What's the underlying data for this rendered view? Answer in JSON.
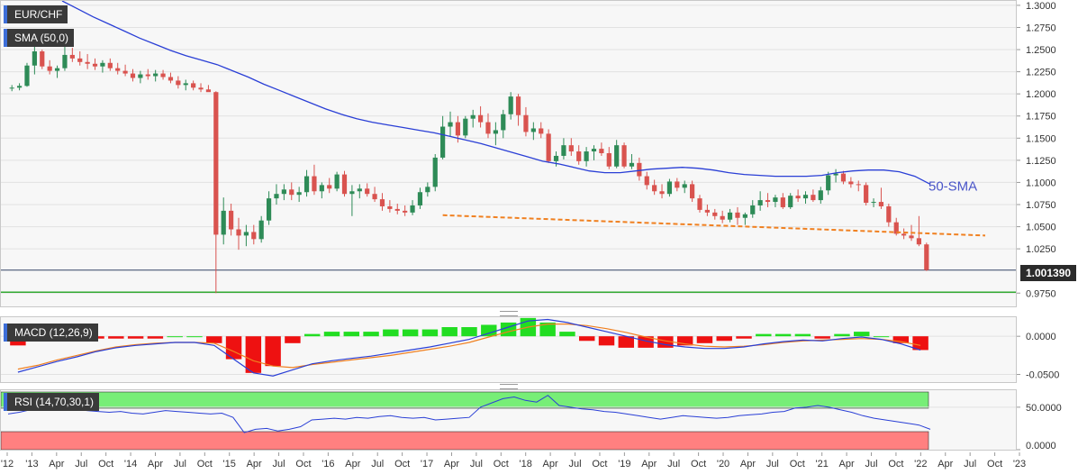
{
  "symbol_label": "EUR/CHF",
  "sma_label": "SMA (50,0)",
  "macd_label": "MACD (12,26,9)",
  "rsi_label": "RSI (14,70,30,1)",
  "sma_annotation": "50-SMA",
  "last_price": "1.001390",
  "colors": {
    "up": "#2e8b57",
    "down": "#d9534f",
    "sma": "#2a3fd6",
    "trend": "#f08020",
    "macd": "#2a3fd6",
    "signal": "#f08020",
    "hist_pos": "#22dd22",
    "hist_neg": "#ee1111",
    "rsi": "#2a3fd6",
    "rsi_ob": "#77ee77",
    "rsi_os": "#ff8080",
    "support": "#33aa33",
    "price_line": "#334466"
  },
  "x_axis_labels": [
    "'12",
    "'13",
    "Apr",
    "Jul",
    "Oct",
    "'14",
    "Apr",
    "Jul",
    "Oct",
    "'15",
    "Apr",
    "Jul",
    "Oct",
    "'16",
    "Apr",
    "Jul",
    "Oct",
    "'17",
    "Apr",
    "Jul",
    "Oct",
    "'18",
    "Apr",
    "Jul",
    "Oct",
    "'19",
    "Apr",
    "Jul",
    "Oct",
    "'20",
    "Apr",
    "Jul",
    "Oct",
    "'21",
    "Apr",
    "Jul",
    "Oct",
    "'22",
    "Apr",
    "Jul",
    "Oct",
    "'23"
  ],
  "chart_data": {
    "type": "candlestick",
    "price_ylim": [
      0.96,
      1.305
    ],
    "price_ticks": [
      "1.3000",
      "1.2750",
      "1.2500",
      "1.2250",
      "1.2000",
      "1.1750",
      "1.1500",
      "1.1250",
      "1.1000",
      "1.0750",
      "1.0500",
      "1.0250",
      "0.9750"
    ],
    "candles": [
      {
        "o": 1.206,
        "h": 1.21,
        "l": 1.203,
        "c": 1.207
      },
      {
        "o": 1.207,
        "h": 1.212,
        "l": 1.204,
        "c": 1.209
      },
      {
        "o": 1.209,
        "h": 1.235,
        "l": 1.208,
        "c": 1.232
      },
      {
        "o": 1.232,
        "h": 1.26,
        "l": 1.222,
        "c": 1.248
      },
      {
        "o": 1.248,
        "h": 1.25,
        "l": 1.228,
        "c": 1.231
      },
      {
        "o": 1.231,
        "h": 1.238,
        "l": 1.222,
        "c": 1.226
      },
      {
        "o": 1.226,
        "h": 1.232,
        "l": 1.218,
        "c": 1.229
      },
      {
        "o": 1.229,
        "h": 1.262,
        "l": 1.226,
        "c": 1.244
      },
      {
        "o": 1.244,
        "h": 1.252,
        "l": 1.236,
        "c": 1.24
      },
      {
        "o": 1.24,
        "h": 1.248,
        "l": 1.232,
        "c": 1.236
      },
      {
        "o": 1.236,
        "h": 1.245,
        "l": 1.228,
        "c": 1.234
      },
      {
        "o": 1.234,
        "h": 1.24,
        "l": 1.227,
        "c": 1.231
      },
      {
        "o": 1.231,
        "h": 1.238,
        "l": 1.224,
        "c": 1.235
      },
      {
        "o": 1.235,
        "h": 1.24,
        "l": 1.226,
        "c": 1.229
      },
      {
        "o": 1.229,
        "h": 1.235,
        "l": 1.222,
        "c": 1.226
      },
      {
        "o": 1.226,
        "h": 1.233,
        "l": 1.22,
        "c": 1.223
      },
      {
        "o": 1.223,
        "h": 1.228,
        "l": 1.214,
        "c": 1.218
      },
      {
        "o": 1.218,
        "h": 1.226,
        "l": 1.212,
        "c": 1.222
      },
      {
        "o": 1.222,
        "h": 1.228,
        "l": 1.216,
        "c": 1.22
      },
      {
        "o": 1.22,
        "h": 1.227,
        "l": 1.214,
        "c": 1.223
      },
      {
        "o": 1.223,
        "h": 1.227,
        "l": 1.216,
        "c": 1.219
      },
      {
        "o": 1.219,
        "h": 1.224,
        "l": 1.212,
        "c": 1.215
      },
      {
        "o": 1.215,
        "h": 1.22,
        "l": 1.206,
        "c": 1.21
      },
      {
        "o": 1.21,
        "h": 1.216,
        "l": 1.204,
        "c": 1.212
      },
      {
        "o": 1.212,
        "h": 1.215,
        "l": 1.204,
        "c": 1.207
      },
      {
        "o": 1.207,
        "h": 1.212,
        "l": 1.202,
        "c": 1.205
      },
      {
        "o": 1.205,
        "h": 1.21,
        "l": 1.203,
        "c": 1.202
      },
      {
        "o": 1.202,
        "h": 1.203,
        "l": 0.975,
        "c": 1.041
      },
      {
        "o": 1.041,
        "h": 1.083,
        "l": 1.03,
        "c": 1.068
      },
      {
        "o": 1.068,
        "h": 1.076,
        "l": 1.04,
        "c": 1.047
      },
      {
        "o": 1.047,
        "h": 1.06,
        "l": 1.024,
        "c": 1.04
      },
      {
        "o": 1.04,
        "h": 1.052,
        "l": 1.028,
        "c": 1.044
      },
      {
        "o": 1.044,
        "h": 1.052,
        "l": 1.03,
        "c": 1.036
      },
      {
        "o": 1.036,
        "h": 1.062,
        "l": 1.032,
        "c": 1.057
      },
      {
        "o": 1.057,
        "h": 1.09,
        "l": 1.052,
        "c": 1.082
      },
      {
        "o": 1.082,
        "h": 1.098,
        "l": 1.075,
        "c": 1.087
      },
      {
        "o": 1.087,
        "h": 1.098,
        "l": 1.08,
        "c": 1.092
      },
      {
        "o": 1.092,
        "h": 1.1,
        "l": 1.08,
        "c": 1.086
      },
      {
        "o": 1.086,
        "h": 1.095,
        "l": 1.078,
        "c": 1.089
      },
      {
        "o": 1.089,
        "h": 1.114,
        "l": 1.084,
        "c": 1.107
      },
      {
        "o": 1.107,
        "h": 1.12,
        "l": 1.086,
        "c": 1.09
      },
      {
        "o": 1.09,
        "h": 1.1,
        "l": 1.082,
        "c": 1.097
      },
      {
        "o": 1.097,
        "h": 1.105,
        "l": 1.088,
        "c": 1.093
      },
      {
        "o": 1.093,
        "h": 1.112,
        "l": 1.09,
        "c": 1.109
      },
      {
        "o": 1.109,
        "h": 1.113,
        "l": 1.084,
        "c": 1.087
      },
      {
        "o": 1.087,
        "h": 1.097,
        "l": 1.062,
        "c": 1.09
      },
      {
        "o": 1.09,
        "h": 1.098,
        "l": 1.082,
        "c": 1.093
      },
      {
        "o": 1.093,
        "h": 1.099,
        "l": 1.084,
        "c": 1.087
      },
      {
        "o": 1.087,
        "h": 1.095,
        "l": 1.078,
        "c": 1.081
      },
      {
        "o": 1.081,
        "h": 1.088,
        "l": 1.068,
        "c": 1.073
      },
      {
        "o": 1.073,
        "h": 1.08,
        "l": 1.066,
        "c": 1.07
      },
      {
        "o": 1.07,
        "h": 1.076,
        "l": 1.064,
        "c": 1.068
      },
      {
        "o": 1.068,
        "h": 1.074,
        "l": 1.062,
        "c": 1.066
      },
      {
        "o": 1.066,
        "h": 1.08,
        "l": 1.063,
        "c": 1.074
      },
      {
        "o": 1.074,
        "h": 1.094,
        "l": 1.07,
        "c": 1.089
      },
      {
        "o": 1.089,
        "h": 1.1,
        "l": 1.084,
        "c": 1.095
      },
      {
        "o": 1.095,
        "h": 1.132,
        "l": 1.09,
        "c": 1.128
      },
      {
        "o": 1.128,
        "h": 1.175,
        "l": 1.126,
        "c": 1.163
      },
      {
        "o": 1.163,
        "h": 1.18,
        "l": 1.152,
        "c": 1.168
      },
      {
        "o": 1.168,
        "h": 1.175,
        "l": 1.145,
        "c": 1.153
      },
      {
        "o": 1.153,
        "h": 1.175,
        "l": 1.15,
        "c": 1.172
      },
      {
        "o": 1.172,
        "h": 1.182,
        "l": 1.162,
        "c": 1.176
      },
      {
        "o": 1.176,
        "h": 1.186,
        "l": 1.162,
        "c": 1.168
      },
      {
        "o": 1.168,
        "h": 1.178,
        "l": 1.15,
        "c": 1.155
      },
      {
        "o": 1.155,
        "h": 1.168,
        "l": 1.142,
        "c": 1.159
      },
      {
        "o": 1.159,
        "h": 1.182,
        "l": 1.15,
        "c": 1.177
      },
      {
        "o": 1.177,
        "h": 1.202,
        "l": 1.171,
        "c": 1.197
      },
      {
        "o": 1.197,
        "h": 1.2,
        "l": 1.164,
        "c": 1.176
      },
      {
        "o": 1.176,
        "h": 1.185,
        "l": 1.152,
        "c": 1.157
      },
      {
        "o": 1.157,
        "h": 1.168,
        "l": 1.148,
        "c": 1.161
      },
      {
        "o": 1.161,
        "h": 1.168,
        "l": 1.15,
        "c": 1.155
      },
      {
        "o": 1.155,
        "h": 1.16,
        "l": 1.122,
        "c": 1.124
      },
      {
        "o": 1.124,
        "h": 1.135,
        "l": 1.118,
        "c": 1.13
      },
      {
        "o": 1.13,
        "h": 1.15,
        "l": 1.126,
        "c": 1.142
      },
      {
        "o": 1.142,
        "h": 1.15,
        "l": 1.13,
        "c": 1.135
      },
      {
        "o": 1.135,
        "h": 1.142,
        "l": 1.12,
        "c": 1.124
      },
      {
        "o": 1.124,
        "h": 1.14,
        "l": 1.118,
        "c": 1.135
      },
      {
        "o": 1.135,
        "h": 1.142,
        "l": 1.125,
        "c": 1.138
      },
      {
        "o": 1.138,
        "h": 1.145,
        "l": 1.13,
        "c": 1.133
      },
      {
        "o": 1.133,
        "h": 1.14,
        "l": 1.115,
        "c": 1.118
      },
      {
        "o": 1.118,
        "h": 1.148,
        "l": 1.116,
        "c": 1.142
      },
      {
        "o": 1.142,
        "h": 1.145,
        "l": 1.116,
        "c": 1.118
      },
      {
        "o": 1.118,
        "h": 1.132,
        "l": 1.115,
        "c": 1.122
      },
      {
        "o": 1.122,
        "h": 1.128,
        "l": 1.102,
        "c": 1.107
      },
      {
        "o": 1.107,
        "h": 1.112,
        "l": 1.092,
        "c": 1.097
      },
      {
        "o": 1.097,
        "h": 1.103,
        "l": 1.086,
        "c": 1.09
      },
      {
        "o": 1.09,
        "h": 1.098,
        "l": 1.082,
        "c": 1.087
      },
      {
        "o": 1.087,
        "h": 1.104,
        "l": 1.084,
        "c": 1.101
      },
      {
        "o": 1.101,
        "h": 1.105,
        "l": 1.09,
        "c": 1.094
      },
      {
        "o": 1.094,
        "h": 1.102,
        "l": 1.088,
        "c": 1.098
      },
      {
        "o": 1.098,
        "h": 1.102,
        "l": 1.078,
        "c": 1.082
      },
      {
        "o": 1.082,
        "h": 1.086,
        "l": 1.066,
        "c": 1.069
      },
      {
        "o": 1.069,
        "h": 1.075,
        "l": 1.062,
        "c": 1.066
      },
      {
        "o": 1.066,
        "h": 1.07,
        "l": 1.058,
        "c": 1.062
      },
      {
        "o": 1.062,
        "h": 1.068,
        "l": 1.054,
        "c": 1.058
      },
      {
        "o": 1.058,
        "h": 1.07,
        "l": 1.055,
        "c": 1.066
      },
      {
        "o": 1.066,
        "h": 1.072,
        "l": 1.052,
        "c": 1.06
      },
      {
        "o": 1.06,
        "h": 1.066,
        "l": 1.052,
        "c": 1.064
      },
      {
        "o": 1.064,
        "h": 1.08,
        "l": 1.06,
        "c": 1.074
      },
      {
        "o": 1.074,
        "h": 1.09,
        "l": 1.068,
        "c": 1.08
      },
      {
        "o": 1.08,
        "h": 1.088,
        "l": 1.072,
        "c": 1.078
      },
      {
        "o": 1.078,
        "h": 1.086,
        "l": 1.072,
        "c": 1.083
      },
      {
        "o": 1.083,
        "h": 1.088,
        "l": 1.07,
        "c": 1.072
      },
      {
        "o": 1.072,
        "h": 1.088,
        "l": 1.07,
        "c": 1.085
      },
      {
        "o": 1.085,
        "h": 1.092,
        "l": 1.078,
        "c": 1.082
      },
      {
        "o": 1.082,
        "h": 1.09,
        "l": 1.076,
        "c": 1.086
      },
      {
        "o": 1.086,
        "h": 1.092,
        "l": 1.078,
        "c": 1.08
      },
      {
        "o": 1.08,
        "h": 1.095,
        "l": 1.076,
        "c": 1.091
      },
      {
        "o": 1.091,
        "h": 1.112,
        "l": 1.086,
        "c": 1.108
      },
      {
        "o": 1.108,
        "h": 1.115,
        "l": 1.1,
        "c": 1.11
      },
      {
        "o": 1.11,
        "h": 1.113,
        "l": 1.098,
        "c": 1.101
      },
      {
        "o": 1.101,
        "h": 1.106,
        "l": 1.094,
        "c": 1.098
      },
      {
        "o": 1.098,
        "h": 1.102,
        "l": 1.09,
        "c": 1.097
      },
      {
        "o": 1.097,
        "h": 1.1,
        "l": 1.074,
        "c": 1.077
      },
      {
        "o": 1.077,
        "h": 1.082,
        "l": 1.072,
        "c": 1.078
      },
      {
        "o": 1.078,
        "h": 1.094,
        "l": 1.07,
        "c": 1.073
      },
      {
        "o": 1.073,
        "h": 1.076,
        "l": 1.05,
        "c": 1.055
      },
      {
        "o": 1.055,
        "h": 1.06,
        "l": 1.04,
        "c": 1.042
      },
      {
        "o": 1.042,
        "h": 1.048,
        "l": 1.036,
        "c": 1.04
      },
      {
        "o": 1.04,
        "h": 1.052,
        "l": 1.034,
        "c": 1.037
      },
      {
        "o": 1.037,
        "h": 1.062,
        "l": 1.028,
        "c": 1.03
      },
      {
        "o": 1.03,
        "h": 1.032,
        "l": 1.0,
        "c": 1.001
      }
    ],
    "sma50": [
      1.305,
      1.296,
      1.287,
      1.279,
      1.271,
      1.263,
      1.256,
      1.249,
      1.243,
      1.238,
      1.233,
      1.226,
      1.219,
      1.211,
      1.204,
      1.197,
      1.19,
      1.183,
      1.177,
      1.172,
      1.168,
      1.165,
      1.162,
      1.159,
      1.156,
      1.152,
      1.148,
      1.144,
      1.139,
      1.134,
      1.129,
      1.124,
      1.121,
      1.117,
      1.113,
      1.111,
      1.111,
      1.113,
      1.115,
      1.116,
      1.117,
      1.116,
      1.114,
      1.111,
      1.109,
      1.108,
      1.107,
      1.107,
      1.107,
      1.108,
      1.111,
      1.113,
      1.114,
      1.114,
      1.112,
      1.107,
      1.098
    ],
    "trendline": [
      [
        1.063,
        1.04
      ]
    ],
    "macd": [
      -0.047,
      -0.04,
      -0.033,
      -0.027,
      -0.02,
      -0.015,
      -0.012,
      -0.01,
      -0.008,
      -0.008,
      -0.012,
      -0.03,
      -0.048,
      -0.052,
      -0.044,
      -0.036,
      -0.032,
      -0.029,
      -0.026,
      -0.022,
      -0.018,
      -0.014,
      -0.009,
      -0.004,
      0.004,
      0.012,
      0.02,
      0.022,
      0.018,
      0.012,
      0.006,
      0.0,
      -0.006,
      -0.011,
      -0.014,
      -0.016,
      -0.016,
      -0.014,
      -0.01,
      -0.007,
      -0.005,
      -0.006,
      -0.003,
      -0.001,
      -0.004,
      -0.01,
      -0.018
    ],
    "signal": [
      -0.043,
      -0.038,
      -0.031,
      -0.025,
      -0.019,
      -0.014,
      -0.011,
      -0.009,
      -0.008,
      -0.008,
      -0.009,
      -0.02,
      -0.032,
      -0.039,
      -0.041,
      -0.037,
      -0.034,
      -0.031,
      -0.028,
      -0.025,
      -0.021,
      -0.017,
      -0.013,
      -0.008,
      -0.001,
      0.006,
      0.012,
      0.016,
      0.016,
      0.014,
      0.01,
      0.005,
      -0.001,
      -0.006,
      -0.01,
      -0.013,
      -0.014,
      -0.013,
      -0.011,
      -0.008,
      -0.006,
      -0.005,
      -0.004,
      -0.003,
      -0.004,
      -0.007,
      -0.012
    ],
    "macd_ylim": [
      -0.06,
      0.025
    ],
    "macd_ticks": [
      "0.0000",
      "-0.0500"
    ],
    "rsi": [
      42,
      44,
      47,
      52,
      49,
      47,
      48,
      46,
      45,
      44,
      45,
      43,
      42,
      44,
      46,
      45,
      44,
      43,
      42,
      43,
      38,
      20,
      24,
      25,
      22,
      24,
      27,
      35,
      36,
      37,
      36,
      38,
      37,
      39,
      40,
      38,
      37,
      38,
      35,
      36,
      37,
      38,
      50,
      55,
      60,
      62,
      58,
      56,
      64,
      52,
      50,
      48,
      47,
      45,
      44,
      42,
      40,
      38,
      36,
      38,
      40,
      39,
      38,
      37,
      38,
      40,
      41,
      42,
      44,
      45,
      49,
      50,
      52,
      50,
      47,
      44,
      40,
      37,
      35,
      33,
      31,
      29,
      24
    ],
    "rsi_ylim": [
      0,
      70
    ],
    "rsi_ticks": [
      "50.0000",
      "0.0000"
    ]
  }
}
